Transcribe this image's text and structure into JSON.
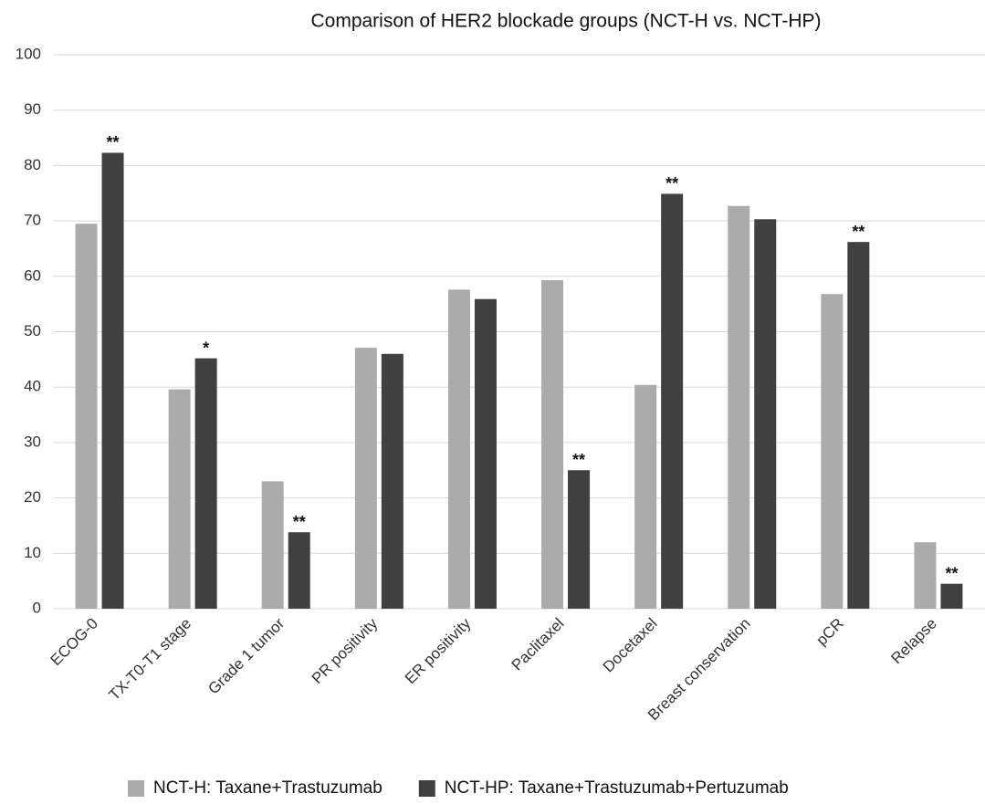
{
  "chart_data": {
    "type": "bar",
    "title": "Comparison of HER2 blockade groups (NCT-H vs. NCT-HP)",
    "categories": [
      "ECOG-0",
      "TX-T0-T1 stage",
      "Grade 1 tumor",
      "PR positivity",
      "ER positivity",
      "Paclitaxel",
      "Docetaxel",
      "Breast conservation",
      "pCR",
      "Relapse"
    ],
    "series": [
      {
        "name": "NCT-H: Taxane+Trastuzumab",
        "color": "#ababab",
        "values": [
          69.5,
          39.6,
          23,
          47.1,
          57.6,
          59.3,
          40.4,
          72.7,
          56.8,
          12
        ]
      },
      {
        "name": "NCT-HP: Taxane+Trastuzumab+Pertuzumab",
        "color": "#404040",
        "values": [
          82.3,
          45.2,
          13.8,
          46,
          55.9,
          25,
          74.9,
          70.3,
          66.2,
          4.5
        ],
        "significance": [
          "**",
          "*",
          "**",
          null,
          null,
          "**",
          "**",
          null,
          "**",
          "**"
        ]
      }
    ],
    "ylim": [
      0,
      100
    ],
    "yticks": [
      0,
      10,
      20,
      30,
      40,
      50,
      60,
      70,
      80,
      90,
      100
    ],
    "grid": true,
    "legend": "bottom"
  }
}
